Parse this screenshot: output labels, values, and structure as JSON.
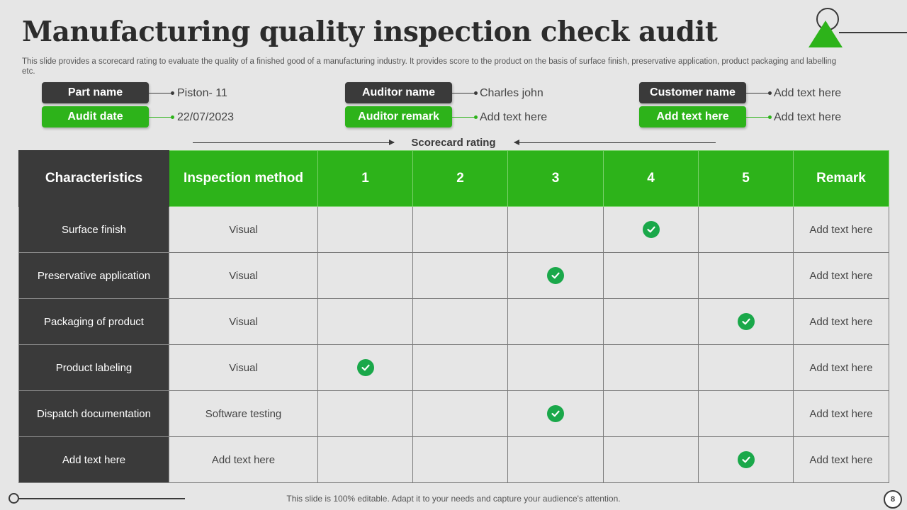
{
  "header": {
    "title": "Manufacturing quality inspection check audit",
    "subtitle": "This slide provides a scorecard rating to evaluate the quality of a finished good of a manufacturing industry. It provides score to the product on the basis of surface finish, preservative application, product packaging and labelling etc."
  },
  "info": {
    "part_name_label": "Part name",
    "part_name_value": "Piston- 11",
    "audit_date_label": "Audit date",
    "audit_date_value": "22/07/2023",
    "auditor_name_label": "Auditor name",
    "auditor_name_value": "Charles john",
    "auditor_remark_label": "Auditor remark",
    "auditor_remark_value": "Add text here",
    "customer_name_label": "Customer name",
    "customer_name_value": "Add text here",
    "extra_label": "Add text here",
    "extra_value": "Add text here"
  },
  "scorecard_label": "Scorecard rating",
  "table": {
    "headers": [
      "Characteristics",
      "Inspection method",
      "1",
      "2",
      "3",
      "4",
      "5",
      "Remark"
    ],
    "rows": [
      {
        "characteristic": "Surface finish",
        "method": "Visual",
        "score": 4,
        "remark": "Add text here"
      },
      {
        "characteristic": "Preservative application",
        "method": "Visual",
        "score": 3,
        "remark": "Add text here"
      },
      {
        "characteristic": "Packaging of product",
        "method": "Visual",
        "score": 5,
        "remark": "Add text here"
      },
      {
        "characteristic": "Product labeling",
        "method": "Visual",
        "score": 1,
        "remark": "Add text here"
      },
      {
        "characteristic": "Dispatch documentation",
        "method": "Software testing",
        "score": 3,
        "remark": "Add text here"
      },
      {
        "characteristic": "Add text here",
        "method": "Add text here",
        "score": 5,
        "remark": "Add text here"
      }
    ]
  },
  "footer": {
    "text": "This slide is 100% editable. Adapt it to your needs and capture your audience's attention.",
    "page_number": "8"
  },
  "colors": {
    "accent_green": "#2db31a",
    "dark": "#3a3a3a",
    "check_green": "#1aa84a"
  }
}
